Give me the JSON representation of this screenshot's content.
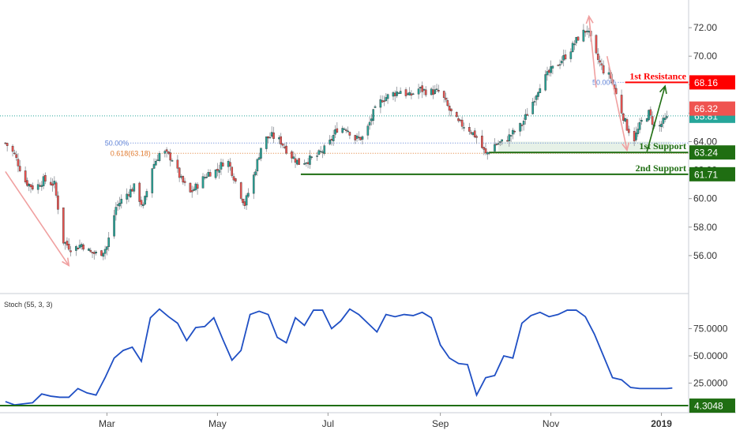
{
  "chart_data": [
    {
      "type": "candlestick",
      "ylim": [
        54.0,
        73.5
      ],
      "y_ticks": [
        56,
        58,
        60,
        62,
        64,
        66,
        68,
        70,
        72
      ],
      "y_tick_labels": [
        "56.00",
        "58.00",
        "60.00",
        "62.00",
        "64.00",
        "66.00",
        "68.00",
        "70.00",
        "72.00"
      ],
      "x_tick_labels": [
        "Mar",
        "May",
        "Jul",
        "Sep",
        "Nov",
        "2019"
      ],
      "x_tick_days": [
        59,
        120,
        181,
        243,
        304,
        365
      ],
      "x_range_days": [
        3,
        380
      ],
      "grid": false,
      "last_close": 65.81,
      "last_close_label": "65.81",
      "anchor_closes": [
        [
          3,
          63.9
        ],
        [
          8,
          63.1
        ],
        [
          14,
          61.2
        ],
        [
          19,
          60.7
        ],
        [
          24,
          61.3
        ],
        [
          30,
          61.0
        ],
        [
          35,
          57.0
        ],
        [
          40,
          56.4
        ],
        [
          45,
          56.8
        ],
        [
          50,
          56.2
        ],
        [
          55,
          56.1
        ],
        [
          59,
          56.6
        ],
        [
          64,
          59.4
        ],
        [
          69,
          60.2
        ],
        [
          74,
          60.8
        ],
        [
          79,
          59.4
        ],
        [
          84,
          62.2
        ],
        [
          89,
          63.4
        ],
        [
          95,
          62.8
        ],
        [
          100,
          61.3
        ],
        [
          105,
          60.4
        ],
        [
          110,
          61.1
        ],
        [
          115,
          61.8
        ],
        [
          120,
          62.0
        ],
        [
          125,
          62.9
        ],
        [
          130,
          61.2
        ],
        [
          135,
          59.6
        ],
        [
          140,
          61.6
        ],
        [
          145,
          64.1
        ],
        [
          150,
          64.4
        ],
        [
          155,
          64.0
        ],
        [
          160,
          63.1
        ],
        [
          165,
          62.5
        ],
        [
          170,
          62.7
        ],
        [
          175,
          63.0
        ],
        [
          181,
          63.7
        ],
        [
          186,
          64.9
        ],
        [
          191,
          65.0
        ],
        [
          196,
          64.2
        ],
        [
          201,
          64.3
        ],
        [
          206,
          66.0
        ],
        [
          211,
          67.0
        ],
        [
          216,
          67.3
        ],
        [
          221,
          67.6
        ],
        [
          226,
          67.2
        ],
        [
          231,
          67.7
        ],
        [
          236,
          67.5
        ],
        [
          243,
          67.5
        ],
        [
          248,
          66.2
        ],
        [
          253,
          65.3
        ],
        [
          258,
          65.0
        ],
        [
          263,
          64.3
        ],
        [
          268,
          63.1
        ],
        [
          273,
          63.8
        ],
        [
          278,
          64.0
        ],
        [
          283,
          64.6
        ],
        [
          288,
          65.2
        ],
        [
          293,
          66.5
        ],
        [
          298,
          68.0
        ],
        [
          304,
          69.0
        ],
        [
          309,
          69.6
        ],
        [
          314,
          70.3
        ],
        [
          319,
          71.3
        ],
        [
          324,
          71.9
        ],
        [
          329,
          70.0
        ],
        [
          333,
          69.0
        ],
        [
          337,
          68.5
        ],
        [
          342,
          66.5
        ],
        [
          346,
          65.0
        ],
        [
          350,
          64.2
        ],
        [
          354,
          65.4
        ],
        [
          358,
          66.0
        ],
        [
          362,
          64.8
        ],
        [
          366,
          65.4
        ],
        [
          370,
          65.81
        ]
      ],
      "indicator_text": "Stoch (55, 3, 3)",
      "annotations": {
        "first_resistance": {
          "label": "1st Resistance",
          "value": 68.16,
          "value_label": "68.16",
          "color": "#ff0000"
        },
        "first_support": {
          "label": "1st Support",
          "value": 63.24,
          "value_label": "63.24",
          "color": "#1f6e12"
        },
        "second_support": {
          "label": "2nd Support",
          "value": 61.71,
          "value_label": "61.71",
          "color": "#1f6e12"
        },
        "price_tag": {
          "value": 66.32,
          "value_label": "66.32",
          "color": "#ef5350"
        },
        "fib_left_50": {
          "label": "50.00%",
          "value": 63.9
        },
        "fib_left_618": {
          "label": "0.618(63.18)",
          "value": 63.18
        },
        "fib_right_50": {
          "label": "50.00%",
          "value": 68.16
        },
        "support_zone": [
          63.24,
          64.0
        ],
        "arrows": [
          {
            "from": [
              3,
              61.9
            ],
            "to": [
              38,
              55.3
            ],
            "color": "#f0a0a0"
          },
          {
            "from": [
              329,
              67.8
            ],
            "to": [
              325,
              72.8
            ],
            "color": "#f0a0a0"
          },
          {
            "from": [
              335,
              70.0
            ],
            "to": [
              346,
              63.4
            ],
            "color": "#f0a0a0"
          },
          {
            "from": [
              357,
              63.3
            ],
            "to": [
              367,
              67.9
            ],
            "color": "#1f6e12"
          }
        ]
      }
    },
    {
      "type": "line",
      "name_text": "Stoch (55, 3, 3)",
      "ylim": [
        0,
        100
      ],
      "y_ticks": [
        25,
        50,
        75
      ],
      "y_tick_labels": [
        "25.0000",
        "50.0000",
        "75.0000"
      ],
      "last_value": 20.5,
      "level": {
        "value": 4.3048,
        "value_label": "4.3048",
        "color": "#1f6e12"
      },
      "series": [
        {
          "color": "#1f4fc4",
          "x": [
            3,
            8,
            13,
            18,
            23,
            28,
            33,
            38,
            43,
            48,
            53,
            58,
            63,
            68,
            73,
            78,
            83,
            88,
            93,
            98,
            103,
            108,
            113,
            118,
            123,
            128,
            133,
            138,
            143,
            148,
            153,
            158,
            163,
            168,
            173,
            178,
            183,
            188,
            193,
            198,
            203,
            208,
            213,
            218,
            223,
            228,
            233,
            238,
            243,
            248,
            253,
            258,
            263,
            268,
            273,
            278,
            283,
            288,
            293,
            298,
            303,
            308,
            313,
            318,
            323,
            328,
            333,
            338,
            343,
            348,
            353,
            358,
            363,
            368,
            371
          ],
          "y": [
            8,
            5,
            6,
            7,
            15,
            13,
            12,
            12,
            20,
            16,
            14,
            30,
            48,
            55,
            58,
            45,
            85,
            93,
            86,
            80,
            64,
            76,
            77,
            85,
            65,
            46,
            55,
            88,
            91,
            88,
            67,
            62,
            85,
            78,
            92,
            92,
            75,
            82,
            93,
            88,
            80,
            72,
            88,
            86,
            88,
            87,
            90,
            85,
            60,
            48,
            43,
            42,
            14,
            30,
            32,
            50,
            48,
            80,
            87,
            90,
            86,
            88,
            92,
            92,
            86,
            70,
            50,
            30,
            28,
            21,
            20,
            20,
            20,
            20,
            20.5
          ]
        }
      ]
    }
  ]
}
